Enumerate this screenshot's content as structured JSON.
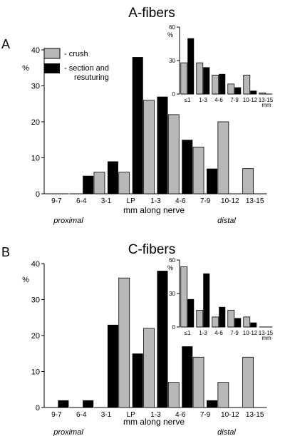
{
  "colors": {
    "crush": "#b8b8b8",
    "section": "#000000",
    "axis": "#000000"
  },
  "legend": {
    "crush_label": "- crush",
    "section_label_line1": "- section and",
    "section_label_line2": "resuturing"
  },
  "chart_data": [
    {
      "type": "bar",
      "panel_letter": "A",
      "title": "A-fibers",
      "ylabel": "%",
      "xlabel": "mm along nerve",
      "proximal_label": "proximal",
      "distal_label": "distal",
      "ylim": [
        0,
        40
      ],
      "yticks": [
        0,
        10,
        20,
        30,
        40
      ],
      "categories": [
        "9-7",
        "6-4",
        "3-1",
        "LP",
        "1-3",
        "4-6",
        "7-9",
        "10-12",
        "13-15"
      ],
      "series": [
        {
          "name": "crush",
          "values": [
            0,
            0,
            6,
            6,
            26,
            22,
            13,
            20,
            7
          ]
        },
        {
          "name": "section and resuturing",
          "values": [
            0,
            5,
            9,
            38,
            27,
            15,
            7,
            0,
            0
          ]
        }
      ],
      "inset": {
        "ylabel": "%",
        "unit_label": "mm",
        "ylim": [
          0,
          60
        ],
        "yticks": [
          0,
          30,
          60
        ],
        "categories": [
          "≤1",
          "1-3",
          "4-6",
          "7-9",
          "10-12",
          "13-15"
        ],
        "series": [
          {
            "name": "crush",
            "values": [
              28,
              28,
              17,
              9,
              17,
              1
            ]
          },
          {
            "name": "section and resuturing",
            "values": [
              50,
              24,
              18,
              6,
              3,
              0
            ]
          }
        ]
      }
    },
    {
      "type": "bar",
      "panel_letter": "B",
      "title": "C-fibers",
      "ylabel": "%",
      "xlabel": "mm along nerve",
      "proximal_label": "proximal",
      "distal_label": "distal",
      "ylim": [
        0,
        40
      ],
      "yticks": [
        0,
        10,
        20,
        30,
        40
      ],
      "categories": [
        "9-7",
        "6-4",
        "3-1",
        "LP",
        "1-3",
        "4-6",
        "7-9",
        "10-12",
        "13-15"
      ],
      "series": [
        {
          "name": "crush",
          "values": [
            0,
            0,
            0,
            36,
            22,
            7,
            14,
            7,
            14
          ]
        },
        {
          "name": "section and resuturing",
          "values": [
            2,
            2,
            23,
            15,
            38,
            17,
            2,
            0,
            0
          ]
        }
      ],
      "inset": {
        "ylabel": "%",
        "unit_label": "mm",
        "ylim": [
          0,
          60
        ],
        "yticks": [
          0,
          30,
          60
        ],
        "categories": [
          "≤1",
          "1-3",
          "4-6",
          "7-9",
          "10-12",
          "13-15"
        ],
        "series": [
          {
            "name": "crush",
            "values": [
              54,
              15,
              9,
              15,
              9,
              0
            ]
          },
          {
            "name": "section and resuturing",
            "values": [
              25,
              48,
              18,
              8,
              4,
              0
            ]
          }
        ]
      }
    }
  ]
}
